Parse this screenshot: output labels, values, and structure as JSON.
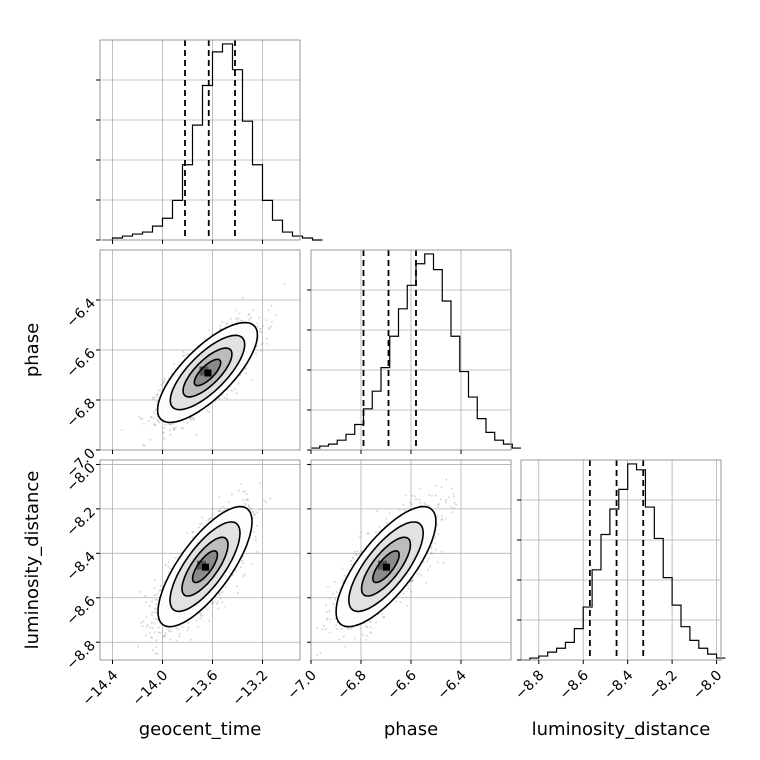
{
  "chart_data": {
    "type": "corner",
    "parameters": [
      {
        "name": "geocent_time",
        "label": "geocent_time",
        "range": [
          -14.5,
          -12.9
        ],
        "ticks": [
          -14.4,
          -14.0,
          -13.6,
          -13.2
        ],
        "tick_labels": [
          "−14.4",
          "−14.0",
          "−13.6",
          "−13.2"
        ],
        "quantiles": [
          -13.82,
          -13.63,
          -13.42
        ]
      },
      {
        "name": "phase",
        "label": "phase",
        "range": [
          -7.0,
          -6.2
        ],
        "ticks": [
          -7.0,
          -6.8,
          -6.6,
          -6.4
        ],
        "tick_labels": [
          "−7.0",
          "−6.8",
          "−6.6",
          "−6.4"
        ],
        "quantiles": [
          -6.79,
          -6.69,
          -6.58
        ]
      },
      {
        "name": "luminosity_distance",
        "label": "luminosity_distance",
        "range": [
          -8.88,
          -7.98
        ],
        "ticks": [
          -8.8,
          -8.6,
          -8.4,
          -8.2,
          -8.0
        ],
        "tick_labels": [
          "−8.8",
          "−8.6",
          "−8.4",
          "−8.2",
          "−8.0"
        ],
        "quantiles": [
          -8.57,
          -8.45,
          -8.33
        ]
      }
    ],
    "histograms": [
      {
        "param": "geocent_time",
        "bin_start": -14.48,
        "bin_width": 0.08,
        "counts": [
          0,
          1,
          2,
          3,
          4,
          7,
          11,
          20,
          38,
          58,
          78,
          95,
          99,
          86,
          60,
          38,
          20,
          10,
          4,
          2,
          1,
          0
        ]
      },
      {
        "param": "phase",
        "bin_start": -7.0,
        "bin_width": 0.035,
        "counts": [
          1,
          2,
          3,
          5,
          8,
          13,
          21,
          30,
          42,
          58,
          72,
          84,
          95,
          100,
          92,
          76,
          58,
          40,
          27,
          16,
          9,
          5,
          3,
          1
        ]
      },
      {
        "param": "luminosity_distance",
        "bin_start": -8.88,
        "bin_width": 0.04,
        "counts": [
          0,
          1,
          2,
          4,
          6,
          9,
          16,
          27,
          46,
          64,
          77,
          87,
          100,
          97,
          78,
          62,
          42,
          28,
          17,
          10,
          6,
          3,
          1
        ]
      }
    ],
    "pair_plots": [
      {
        "x": "geocent_time",
        "y": "phase",
        "mean": [
          -13.64,
          -6.69
        ],
        "sd": [
          0.17,
          0.085
        ],
        "corr": 0.75
      },
      {
        "x": "geocent_time",
        "y": "luminosity_distance",
        "mean": [
          -13.66,
          -8.46
        ],
        "sd": [
          0.16,
          0.115
        ],
        "corr": 0.75
      },
      {
        "x": "phase",
        "y": "luminosity_distance",
        "mean": [
          -6.7,
          -8.46
        ],
        "sd": [
          0.085,
          0.115
        ],
        "corr": 0.75
      }
    ],
    "quantile_line_style": "dashed",
    "grid": true
  }
}
